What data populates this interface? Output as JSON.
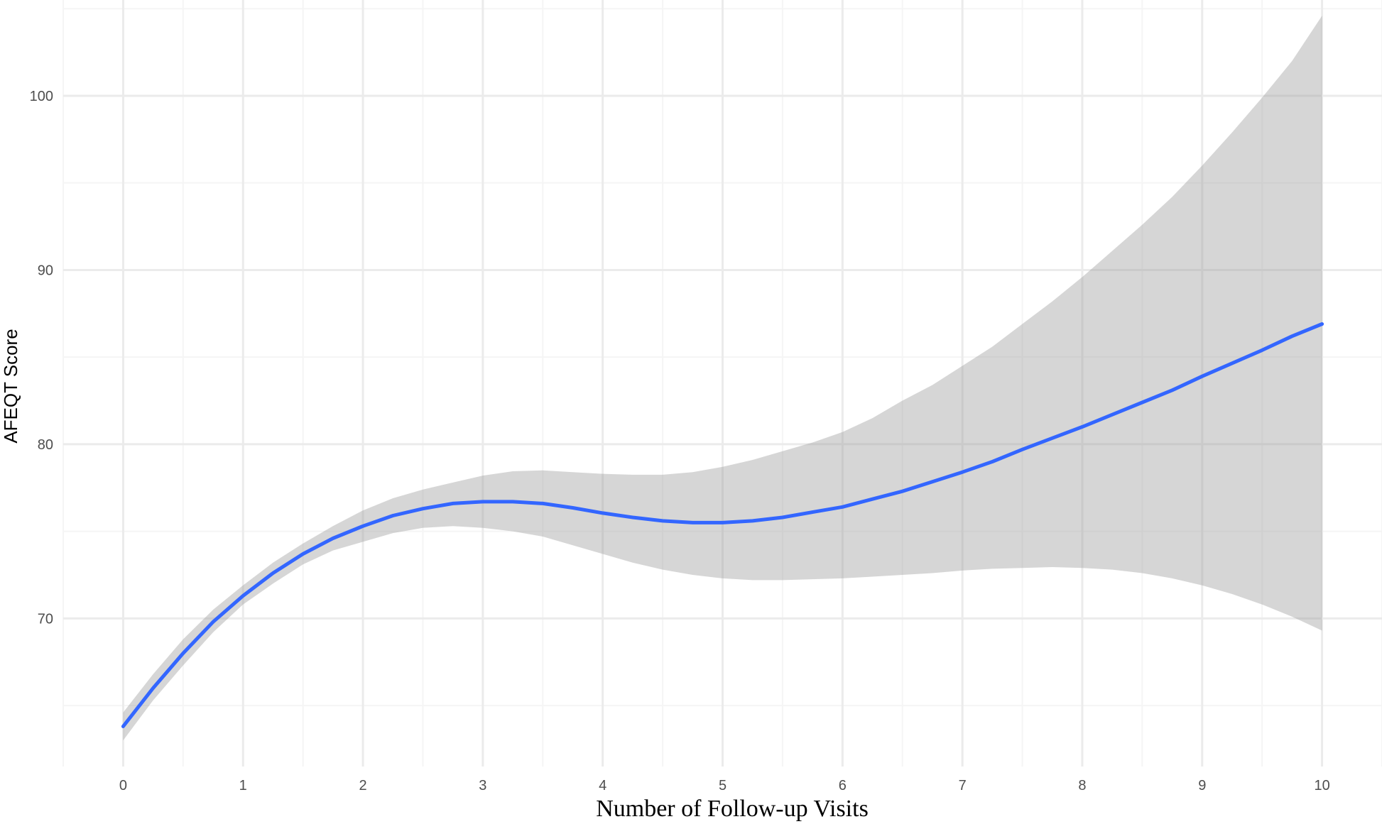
{
  "chart_data": {
    "type": "line",
    "title": "",
    "xlabel": "Number of Follow-up Visits",
    "ylabel": "AFEQT Score",
    "xlim": [
      -0.5,
      10.5
    ],
    "ylim": [
      61.5,
      105.5
    ],
    "x_ticks": [
      0,
      1,
      2,
      3,
      4,
      5,
      6,
      7,
      8,
      9,
      10
    ],
    "x_tick_labels": [
      "0",
      "1",
      "2",
      "3",
      "4",
      "5",
      "6",
      "7",
      "8",
      "9",
      "10"
    ],
    "y_ticks": [
      70,
      80,
      90,
      100
    ],
    "y_tick_labels": [
      "70",
      "80",
      "90",
      "100"
    ],
    "x_minor_breaks": [
      -0.5,
      0.5,
      1.5,
      2.5,
      3.5,
      4.5,
      5.5,
      6.5,
      7.5,
      8.5,
      9.5,
      10.5
    ],
    "y_minor_breaks": [
      65,
      75,
      85,
      95,
      105
    ],
    "grid": true,
    "legend": "none",
    "series": [
      {
        "x": [
          0,
          0.25,
          0.5,
          0.75,
          1,
          1.25,
          1.5,
          1.75,
          2,
          2.25,
          2.5,
          2.75,
          3,
          3.25,
          3.5,
          3.75,
          4,
          4.25,
          4.5,
          4.75,
          5,
          5.25,
          5.5,
          5.75,
          6,
          6.25,
          6.5,
          6.75,
          7,
          7.25,
          7.5,
          7.75,
          8,
          8.25,
          8.5,
          8.75,
          9,
          9.25,
          9.5,
          9.75,
          10
        ],
        "y": [
          63.8,
          66.0,
          68.0,
          69.8,
          71.3,
          72.6,
          73.7,
          74.6,
          75.3,
          75.9,
          76.3,
          76.6,
          76.7,
          76.7,
          76.6,
          76.35,
          76.05,
          75.8,
          75.6,
          75.5,
          75.5,
          75.6,
          75.8,
          76.1,
          76.4,
          76.85,
          77.3,
          77.85,
          78.4,
          79.0,
          79.7,
          80.35,
          81.0,
          81.7,
          82.4,
          83.1,
          83.9,
          84.65,
          85.4,
          86.2,
          86.9
        ],
        "ymin": [
          63.0,
          65.3,
          67.3,
          69.2,
          70.8,
          72.0,
          73.1,
          73.9,
          74.4,
          74.9,
          75.2,
          75.3,
          75.2,
          75.0,
          74.7,
          74.2,
          73.7,
          73.2,
          72.8,
          72.5,
          72.3,
          72.2,
          72.2,
          72.25,
          72.3,
          72.4,
          72.5,
          72.6,
          72.75,
          72.85,
          72.9,
          72.95,
          72.9,
          72.8,
          72.6,
          72.3,
          71.9,
          71.4,
          70.8,
          70.1,
          69.3
        ],
        "ymax": [
          64.6,
          66.8,
          68.8,
          70.5,
          71.9,
          73.2,
          74.3,
          75.3,
          76.2,
          76.9,
          77.4,
          77.8,
          78.2,
          78.45,
          78.5,
          78.4,
          78.3,
          78.25,
          78.25,
          78.4,
          78.7,
          79.1,
          79.6,
          80.1,
          80.7,
          81.5,
          82.5,
          83.4,
          84.5,
          85.6,
          86.9,
          88.2,
          89.6,
          91.1,
          92.6,
          94.2,
          96.0,
          97.9,
          99.9,
          102.0,
          104.6
        ]
      }
    ],
    "colors": {
      "line": "#3366ff",
      "ribbon": "#999999",
      "ribbon_alpha": 0.4,
      "grid_major": "#ebebeb",
      "grid_minor": "#f5f5f5",
      "tick_text": "#4d4d4d"
    }
  }
}
